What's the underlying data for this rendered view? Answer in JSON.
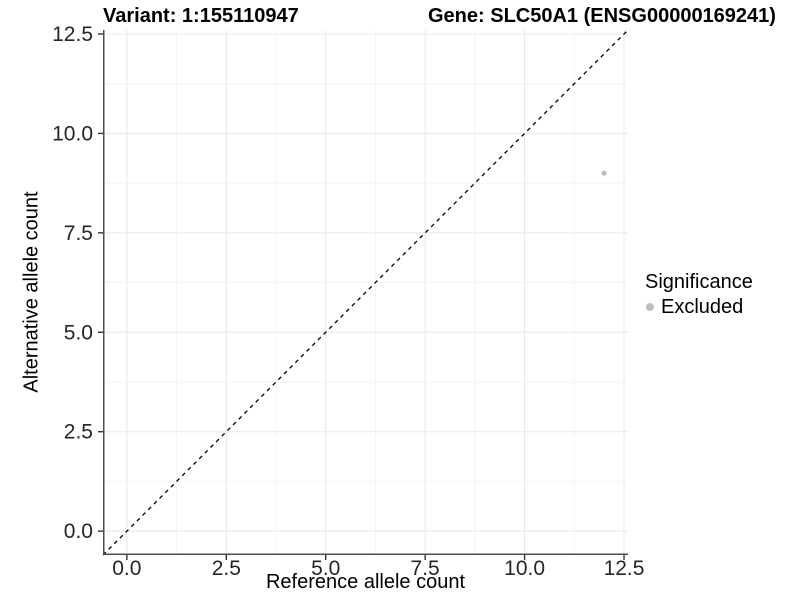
{
  "chart_data": {
    "type": "scatter",
    "title_left": "Variant: 1:155110947",
    "title_right": "Gene: SLC50A1 (ENSG00000169241)",
    "xlabel": "Reference allele count",
    "ylabel": "Alternative allele count",
    "xlim": [
      -0.6,
      12.6
    ],
    "ylim": [
      -0.6,
      12.6
    ],
    "x_ticks": [
      0,
      2.5,
      5,
      7.5,
      10,
      12.5
    ],
    "x_tick_labels": [
      "0.0",
      "2.5",
      "5.0",
      "7.5",
      "10.0",
      "12.5"
    ],
    "y_ticks": [
      0,
      2.5,
      5,
      7.5,
      10,
      12.5
    ],
    "y_tick_labels": [
      "0.0",
      "2.5",
      "5.0",
      "7.5",
      "10.0",
      "12.5"
    ],
    "minor_ticks": [
      1.25,
      3.75,
      6.25,
      8.75,
      11.25
    ],
    "grid": true,
    "reference_line": {
      "type": "identity",
      "style": "dashed",
      "from": [
        -0.6,
        -0.6
      ],
      "to": [
        12.6,
        12.6
      ],
      "color": "#000000"
    },
    "series": [
      {
        "name": "Excluded",
        "color": "#bebebe",
        "point_radius": 2.6,
        "points": [
          {
            "x": 12,
            "y": 9
          }
        ]
      }
    ],
    "legend": {
      "title": "Significance",
      "position": "right",
      "entries": [
        "Excluded"
      ]
    },
    "colors": {
      "axis": "#4d4d4d",
      "tick": "#333333",
      "grid_major": "#e8e8e8",
      "grid_minor": "#f4f4f4",
      "tick_text": "#262626"
    }
  }
}
